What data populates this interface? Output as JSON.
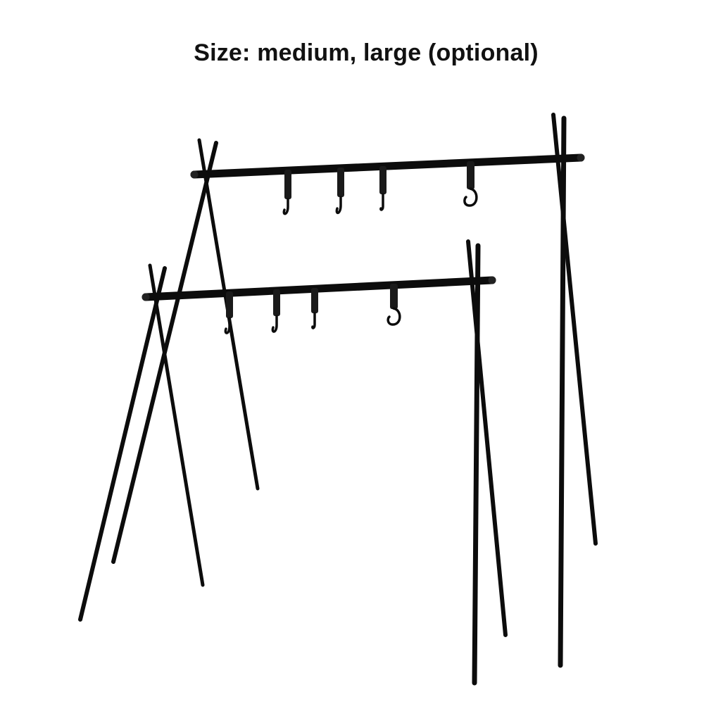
{
  "caption": {
    "text": "Size: medium, large (optional)"
  },
  "product_image": {
    "subject": "two-hanging-racks",
    "colors": {
      "frame": "#0c0c0c",
      "background": "#ffffff"
    }
  }
}
